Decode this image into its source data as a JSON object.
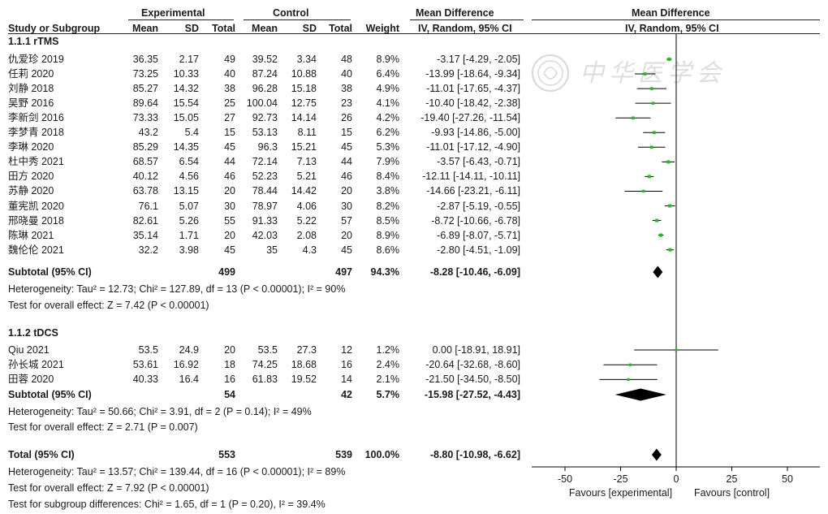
{
  "header": {
    "experimental": "Experimental",
    "control": "Control",
    "mean_difference": "Mean Difference",
    "plot_title": "Mean Difference",
    "study_col": "Study or Subgroup",
    "mean": "Mean",
    "sd": "SD",
    "total": "Total",
    "weight": "Weight",
    "method": "IV, Random, 95% CI",
    "plot_method": "IV, Random, 95% CI"
  },
  "watermark": "中华医学会",
  "chart_data": {
    "type": "forest",
    "xlim": [
      -50,
      50
    ],
    "ticks": [
      "-50",
      "-25",
      "0",
      "25",
      "50"
    ],
    "tick_values": [
      -50,
      -25,
      0,
      25,
      50
    ],
    "favours_left": "Favours [experimental]",
    "favours_right": "Favours [control]",
    "subgroups": [
      {
        "title": "1.1.1 rTMS",
        "studies": [
          {
            "name": "仇爱珍 2019",
            "e_mean": "36.35",
            "e_sd": "2.17",
            "e_total": "49",
            "c_mean": "39.52",
            "c_sd": "3.34",
            "c_total": "48",
            "weight": "8.9%",
            "ci_text": "-3.17 [-4.29, -2.05]",
            "md": -3.17,
            "lo": -4.29,
            "hi": -2.05
          },
          {
            "name": "任莉 2020",
            "e_mean": "73.25",
            "e_sd": "10.33",
            "e_total": "40",
            "c_mean": "87.24",
            "c_sd": "10.88",
            "c_total": "40",
            "weight": "6.4%",
            "ci_text": "-13.99 [-18.64, -9.34]",
            "md": -13.99,
            "lo": -18.64,
            "hi": -9.34
          },
          {
            "name": "刘静 2018",
            "e_mean": "85.27",
            "e_sd": "14.32",
            "e_total": "38",
            "c_mean": "96.28",
            "c_sd": "15.18",
            "c_total": "38",
            "weight": "4.9%",
            "ci_text": "-11.01 [-17.65, -4.37]",
            "md": -11.01,
            "lo": -17.65,
            "hi": -4.37
          },
          {
            "name": "吴野 2016",
            "e_mean": "89.64",
            "e_sd": "15.54",
            "e_total": "25",
            "c_mean": "100.04",
            "c_sd": "12.75",
            "c_total": "23",
            "weight": "4.1%",
            "ci_text": "-10.40 [-18.42, -2.38]",
            "md": -10.4,
            "lo": -18.42,
            "hi": -2.38
          },
          {
            "name": "李新剑 2016",
            "e_mean": "73.33",
            "e_sd": "15.05",
            "e_total": "27",
            "c_mean": "92.73",
            "c_sd": "14.14",
            "c_total": "26",
            "weight": "4.2%",
            "ci_text": "-19.40 [-27.26, -11.54]",
            "md": -19.4,
            "lo": -27.26,
            "hi": -11.54
          },
          {
            "name": "李梦青 2018",
            "e_mean": "43.2",
            "e_sd": "5.4",
            "e_total": "15",
            "c_mean": "53.13",
            "c_sd": "8.11",
            "c_total": "15",
            "weight": "6.2%",
            "ci_text": "-9.93 [-14.86, -5.00]",
            "md": -9.93,
            "lo": -14.86,
            "hi": -5.0
          },
          {
            "name": "李琳 2020",
            "e_mean": "85.29",
            "e_sd": "14.35",
            "e_total": "45",
            "c_mean": "96.3",
            "c_sd": "15.21",
            "c_total": "45",
            "weight": "5.3%",
            "ci_text": "-11.01 [-17.12, -4.90]",
            "md": -11.01,
            "lo": -17.12,
            "hi": -4.9
          },
          {
            "name": "杜中秀 2021",
            "e_mean": "68.57",
            "e_sd": "6.54",
            "e_total": "44",
            "c_mean": "72.14",
            "c_sd": "7.13",
            "c_total": "44",
            "weight": "7.9%",
            "ci_text": "-3.57 [-6.43, -0.71]",
            "md": -3.57,
            "lo": -6.43,
            "hi": -0.71
          },
          {
            "name": "田方 2020",
            "e_mean": "40.12",
            "e_sd": "4.56",
            "e_total": "46",
            "c_mean": "52.23",
            "c_sd": "5.21",
            "c_total": "46",
            "weight": "8.4%",
            "ci_text": "-12.11 [-14.11, -10.11]",
            "md": -12.11,
            "lo": -14.11,
            "hi": -10.11
          },
          {
            "name": "苏静 2020",
            "e_mean": "63.78",
            "e_sd": "13.15",
            "e_total": "20",
            "c_mean": "78.44",
            "c_sd": "14.42",
            "c_total": "20",
            "weight": "3.8%",
            "ci_text": "-14.66 [-23.21, -6.11]",
            "md": -14.66,
            "lo": -23.21,
            "hi": -6.11
          },
          {
            "name": "董宪凯 2020",
            "e_mean": "76.1",
            "e_sd": "5.07",
            "e_total": "30",
            "c_mean": "78.97",
            "c_sd": "4.06",
            "c_total": "30",
            "weight": "8.2%",
            "ci_text": "-2.87 [-5.19, -0.55]",
            "md": -2.87,
            "lo": -5.19,
            "hi": -0.55
          },
          {
            "name": "邢晓曼 2018",
            "e_mean": "82.61",
            "e_sd": "5.26",
            "e_total": "55",
            "c_mean": "91.33",
            "c_sd": "5.22",
            "c_total": "57",
            "weight": "8.5%",
            "ci_text": "-8.72 [-10.66, -6.78]",
            "md": -8.72,
            "lo": -10.66,
            "hi": -6.78
          },
          {
            "name": "陈琳 2021",
            "e_mean": "35.14",
            "e_sd": "1.71",
            "e_total": "20",
            "c_mean": "42.03",
            "c_sd": "2.08",
            "c_total": "20",
            "weight": "8.9%",
            "ci_text": "-6.89 [-8.07, -5.71]",
            "md": -6.89,
            "lo": -8.07,
            "hi": -5.71
          },
          {
            "name": "魏伦伦 2021",
            "e_mean": "32.2",
            "e_sd": "3.98",
            "e_total": "45",
            "c_mean": "35",
            "c_sd": "4.3",
            "c_total": "45",
            "weight": "8.6%",
            "ci_text": "-2.80 [-4.51, -1.09]",
            "md": -2.8,
            "lo": -4.51,
            "hi": -1.09
          }
        ],
        "subtotal": {
          "label": "Subtotal (95% CI)",
          "e_total": "499",
          "c_total": "497",
          "weight": "94.3%",
          "ci_text": "-8.28 [-10.46, -6.09]",
          "md": -8.28,
          "lo": -10.46,
          "hi": -6.09
        },
        "heterogeneity": "Heterogeneity: Tau² = 12.73; Chi² = 127.89, df = 13 (P < 0.00001); I² = 90%",
        "overall": "Test for overall effect: Z = 7.42 (P < 0.00001)"
      },
      {
        "title": "1.1.2 tDCS",
        "studies": [
          {
            "name": "Qiu 2021",
            "e_mean": "53.5",
            "e_sd": "24.9",
            "e_total": "20",
            "c_mean": "53.5",
            "c_sd": "27.3",
            "c_total": "12",
            "weight": "1.2%",
            "ci_text": "0.00 [-18.91, 18.91]",
            "md": 0.0,
            "lo": -18.91,
            "hi": 18.91
          },
          {
            "name": "孙长城 2021",
            "e_mean": "53.61",
            "e_sd": "16.92",
            "e_total": "18",
            "c_mean": "74.25",
            "c_sd": "18.68",
            "c_total": "16",
            "weight": "2.4%",
            "ci_text": "-20.64 [-32.68, -8.60]",
            "md": -20.64,
            "lo": -32.68,
            "hi": -8.6
          },
          {
            "name": "田蓉 2020",
            "e_mean": "40.33",
            "e_sd": "16.4",
            "e_total": "16",
            "c_mean": "61.83",
            "c_sd": "19.52",
            "c_total": "14",
            "weight": "2.1%",
            "ci_text": "-21.50 [-34.50, -8.50]",
            "md": -21.5,
            "lo": -34.5,
            "hi": -8.5
          }
        ],
        "subtotal": {
          "label": "Subtotal (95% CI)",
          "e_total": "54",
          "c_total": "42",
          "weight": "5.7%",
          "ci_text": "-15.98 [-27.52, -4.43]",
          "md": -15.98,
          "lo": -27.52,
          "hi": -4.43
        },
        "heterogeneity": "Heterogeneity: Tau² = 50.66; Chi² = 3.91, df = 2 (P = 0.14); I² = 49%",
        "overall": "Test for overall effect: Z = 2.71 (P = 0.007)"
      }
    ],
    "total": {
      "label": "Total (95% CI)",
      "e_total": "553",
      "c_total": "539",
      "weight": "100.0%",
      "ci_text": "-8.80 [-10.98, -6.62]",
      "md": -8.8,
      "lo": -10.98,
      "hi": -6.62
    },
    "total_heterogeneity": "Heterogeneity: Tau² = 13.57; Chi² = 139.44, df = 16 (P < 0.00001); I² = 89%",
    "total_overall": "Test for overall effect: Z = 7.92 (P < 0.00001)",
    "subgroup_diff": "Test for subgroup differences: Chi² = 1.65, df = 1 (P = 0.20), I² = 39.4%",
    "colors": {
      "marker": "#19c219",
      "line": "#000000",
      "diamond": "#000000"
    }
  }
}
